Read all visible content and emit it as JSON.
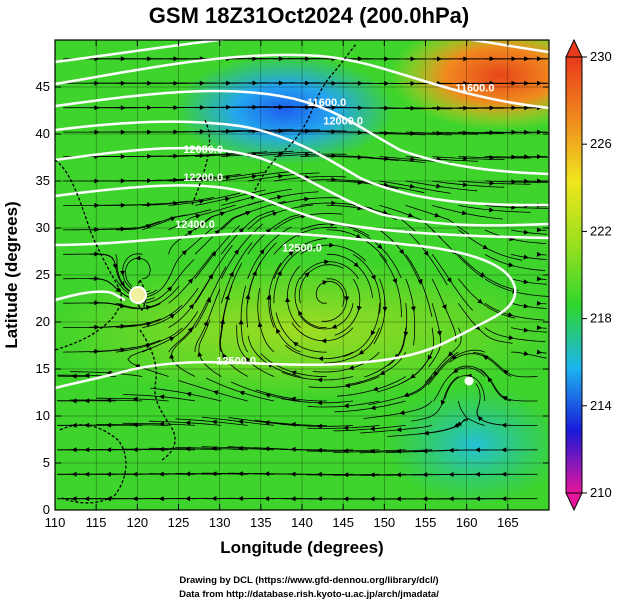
{
  "chart_data": {
    "type": "heatmap",
    "title": "GSM 18Z31Oct2024 (200.0hPa)",
    "xlabel": "Longitude (degrees)",
    "ylabel": "Latitude  (degrees)",
    "xlim": [
      110,
      170
    ],
    "ylim": [
      0,
      50
    ],
    "x_ticks": [
      "110",
      "115",
      "120",
      "125",
      "130",
      "135",
      "140",
      "145",
      "150",
      "155",
      "160",
      "165"
    ],
    "y_ticks": [
      "0",
      "5",
      "10",
      "15",
      "20",
      "25",
      "30",
      "35",
      "40",
      "45"
    ],
    "colorbar": {
      "min": 210,
      "max": 230,
      "ticks": [
        "210",
        "214",
        "218",
        "222",
        "226",
        "230"
      ],
      "colors": [
        "#e8159c",
        "#1a1ad8",
        "#1cb4f0",
        "#2ed62e",
        "#9ae01e",
        "#f0e61e",
        "#f08a1e",
        "#e83a1a"
      ]
    },
    "contours": [
      {
        "label": "12500.0",
        "lon": 140,
        "lat": 27.5
      },
      {
        "label": "12500.0",
        "lon": 132,
        "lat": 15.5
      },
      {
        "label": "11600.0",
        "lon": 161,
        "lat": 44.5
      },
      {
        "label": "12000.0",
        "lon": 145,
        "lat": 41
      },
      {
        "label": "11600.0",
        "lon": 143,
        "lat": 43
      },
      {
        "label": "12000.0",
        "lon": 128,
        "lat": 38
      },
      {
        "label": "12200.0",
        "lon": 128,
        "lat": 35
      },
      {
        "label": "12400.0",
        "lon": 127,
        "lat": 30
      }
    ],
    "features": [
      {
        "name": "cyclonic-circulation",
        "lon": 120.5,
        "lat": 25
      },
      {
        "name": "anticyclone",
        "lon": 143,
        "lat": 24.5
      },
      {
        "name": "vortex-marker",
        "lon": 160,
        "lat": 13
      }
    ]
  },
  "credits": {
    "line1": "Drawing by DCL (https://www.gfd-dennou.org/library/dcl/)",
    "line2": "Data from http://database.rish.kyoto-u.ac.jp/arch/jmadata/"
  }
}
